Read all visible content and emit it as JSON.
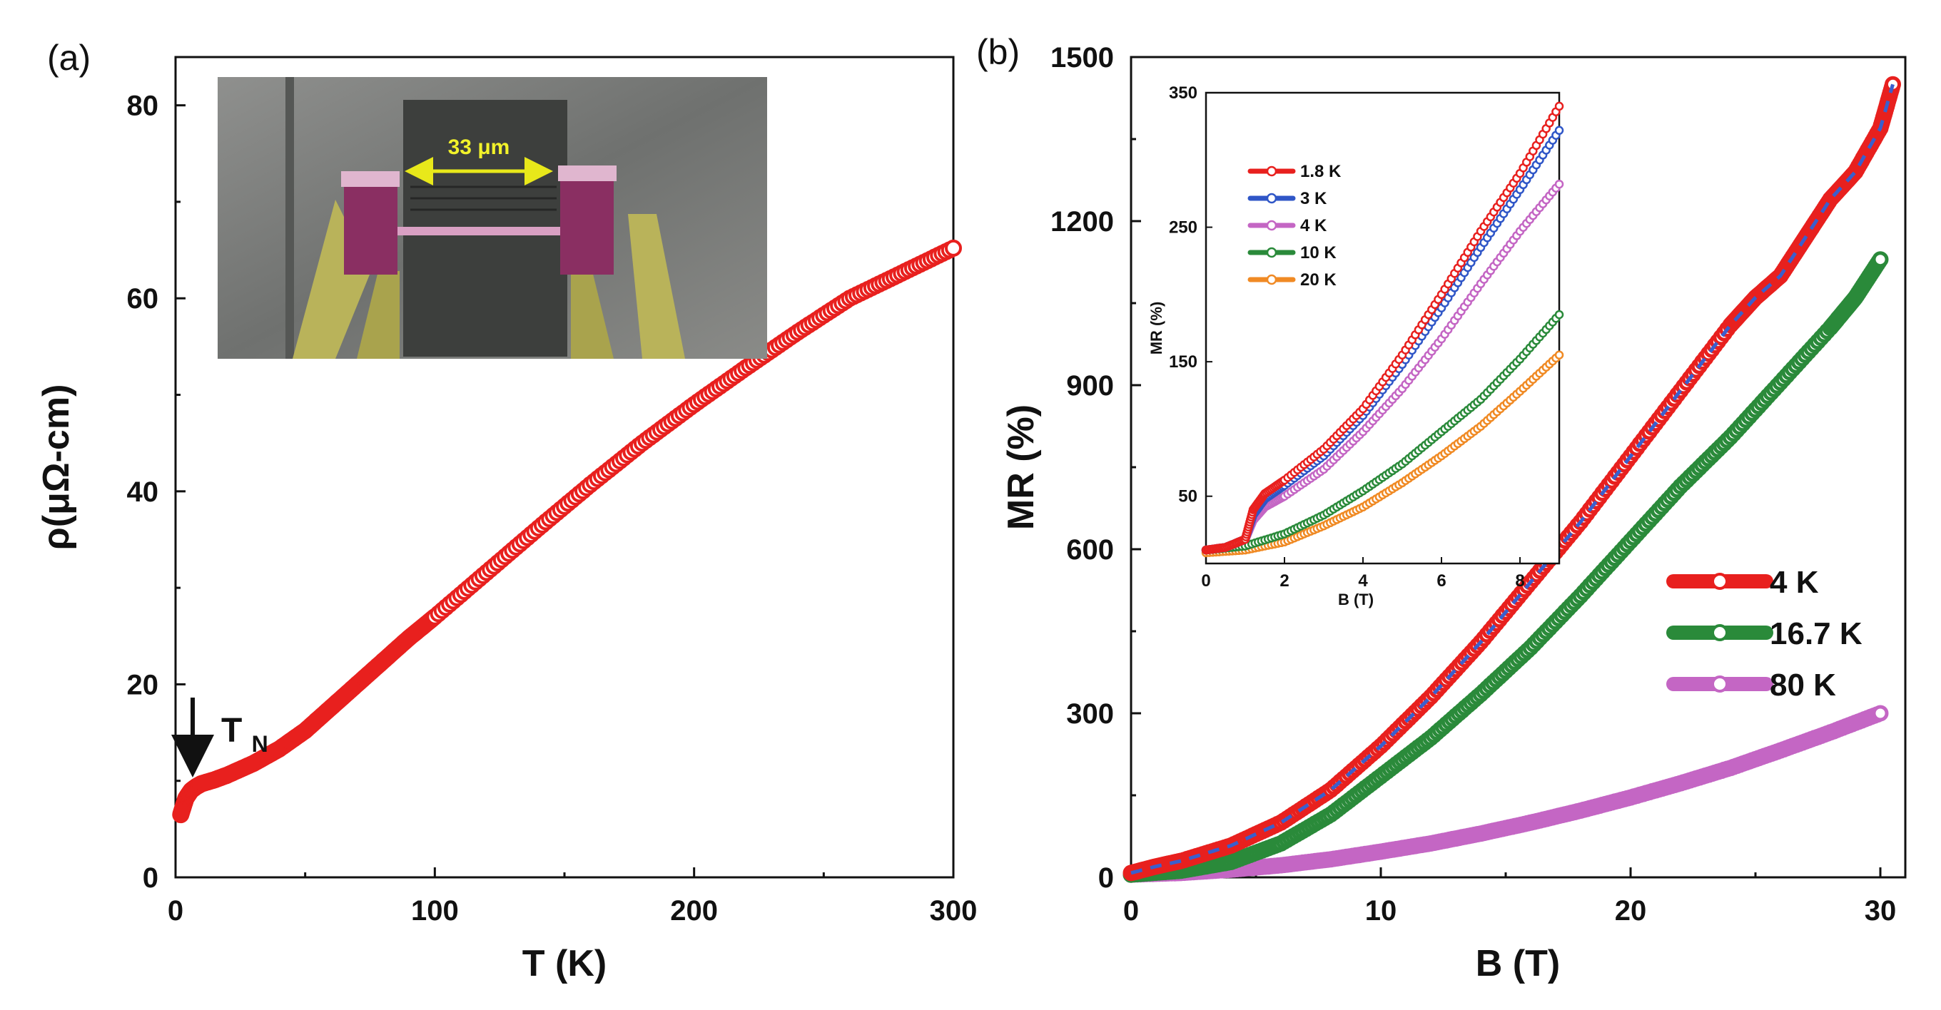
{
  "chart_data": [
    {
      "panel": "(a)",
      "type": "scatter",
      "title": "",
      "xlabel": "T (K)",
      "ylabel": "ρ(μΩ-cm)",
      "xlim": [
        0,
        300
      ],
      "ylim": [
        0,
        85
      ],
      "xticks": [
        0,
        100,
        200,
        300
      ],
      "yticks": [
        0,
        20,
        40,
        60,
        80
      ],
      "grid": false,
      "series": [
        {
          "name": "ρ(T)",
          "color": "#e8201e",
          "x": [
            2,
            4,
            6,
            8,
            10,
            15,
            20,
            30,
            40,
            50,
            60,
            70,
            80,
            90,
            100,
            120,
            140,
            160,
            180,
            200,
            220,
            240,
            260,
            280,
            300
          ],
          "y": [
            6.5,
            8.2,
            9.0,
            9.4,
            9.7,
            10.1,
            10.6,
            11.8,
            13.3,
            15.2,
            17.6,
            20.0,
            22.4,
            24.8,
            27.0,
            31.6,
            36.2,
            40.7,
            45.0,
            49.0,
            52.8,
            56.5,
            60.0,
            62.6,
            65.2
          ]
        }
      ],
      "annotations": [
        {
          "text": "T",
          "subscript": "N",
          "x": 6,
          "arrow": "down"
        }
      ],
      "inset": {
        "type": "micrograph",
        "scale_label": "33 μm"
      }
    },
    {
      "panel": "(b)",
      "type": "scatter",
      "title": "",
      "xlabel": "B (T)",
      "ylabel": "MR (%)",
      "xlim": [
        0,
        31
      ],
      "ylim": [
        0,
        1500
      ],
      "xticks": [
        0,
        10,
        20,
        30
      ],
      "yticks": [
        0,
        300,
        600,
        900,
        1200,
        1500
      ],
      "grid": false,
      "legend_position": "right",
      "series": [
        {
          "name": "4 K",
          "color": "#e8201e",
          "x": [
            0,
            1,
            2,
            4,
            6,
            8,
            10,
            12,
            14,
            16,
            18,
            20,
            22,
            24,
            25,
            26,
            27,
            28,
            29,
            30,
            30.5
          ],
          "y": [
            8,
            20,
            30,
            58,
            100,
            160,
            240,
            330,
            430,
            540,
            650,
            770,
            890,
            1010,
            1060,
            1100,
            1170,
            1240,
            1290,
            1370,
            1450
          ]
        },
        {
          "name": "16.7 K",
          "color": "#2a8a3a",
          "x": [
            0,
            2,
            4,
            6,
            8,
            10,
            12,
            14,
            16,
            18,
            20,
            22,
            24,
            26,
            28,
            29,
            30
          ],
          "y": [
            5,
            12,
            28,
            62,
            115,
            185,
            255,
            335,
            420,
            515,
            615,
            715,
            805,
            905,
            1005,
            1060,
            1130
          ]
        },
        {
          "name": "80 K",
          "color": "#c466c4",
          "x": [
            0,
            2,
            4,
            6,
            8,
            10,
            12,
            14,
            16,
            18,
            20,
            22,
            24,
            26,
            28,
            30
          ],
          "y": [
            5,
            8,
            14,
            22,
            33,
            47,
            62,
            80,
            100,
            122,
            146,
            172,
            200,
            232,
            265,
            300
          ]
        }
      ],
      "fit": {
        "name": "fit",
        "color": "#3a5fcd",
        "style": "dashed",
        "of_series": "4 K"
      }
    },
    {
      "panel": "(b) inset",
      "type": "scatter",
      "title": "",
      "xlabel": "B (T)",
      "ylabel": "MR (%)",
      "xlim": [
        0,
        9
      ],
      "ylim": [
        0,
        350
      ],
      "xticks": [
        0,
        2,
        4,
        6,
        8
      ],
      "yticks": [
        50,
        150,
        250,
        350
      ],
      "grid": false,
      "legend_position": "top-left",
      "series": [
        {
          "name": "1.8 K",
          "color": "#e8201e",
          "x": [
            0,
            0.5,
            1,
            1.2,
            1.5,
            2,
            3,
            4,
            5,
            6,
            7,
            8,
            9
          ],
          "y": [
            10,
            12,
            18,
            40,
            52,
            62,
            85,
            115,
            155,
            200,
            247,
            290,
            340
          ]
        },
        {
          "name": "3 K",
          "color": "#2f56c7",
          "x": [
            0,
            0.5,
            1,
            1.2,
            1.5,
            2,
            3,
            4,
            5,
            6,
            7,
            8,
            9
          ],
          "y": [
            10,
            12,
            18,
            36,
            48,
            58,
            80,
            110,
            148,
            190,
            235,
            278,
            322
          ]
        },
        {
          "name": "4 K",
          "color": "#c466c4",
          "x": [
            0,
            0.5,
            1,
            1.2,
            1.5,
            2,
            3,
            4,
            5,
            6,
            7,
            8,
            9
          ],
          "y": [
            10,
            12,
            18,
            32,
            42,
            50,
            70,
            98,
            130,
            167,
            208,
            247,
            282
          ]
        },
        {
          "name": "10 K",
          "color": "#2a8a3a",
          "x": [
            0,
            1,
            2,
            3,
            4,
            5,
            6,
            7,
            8,
            9
          ],
          "y": [
            10,
            13,
            22,
            36,
            54,
            74,
            98,
            122,
            152,
            185
          ]
        },
        {
          "name": "20 K",
          "color": "#f08a24",
          "x": [
            0,
            1,
            2,
            3,
            4,
            5,
            6,
            7,
            8,
            9
          ],
          "y": [
            8,
            10,
            16,
            28,
            42,
            60,
            80,
            102,
            128,
            155
          ]
        }
      ]
    }
  ]
}
